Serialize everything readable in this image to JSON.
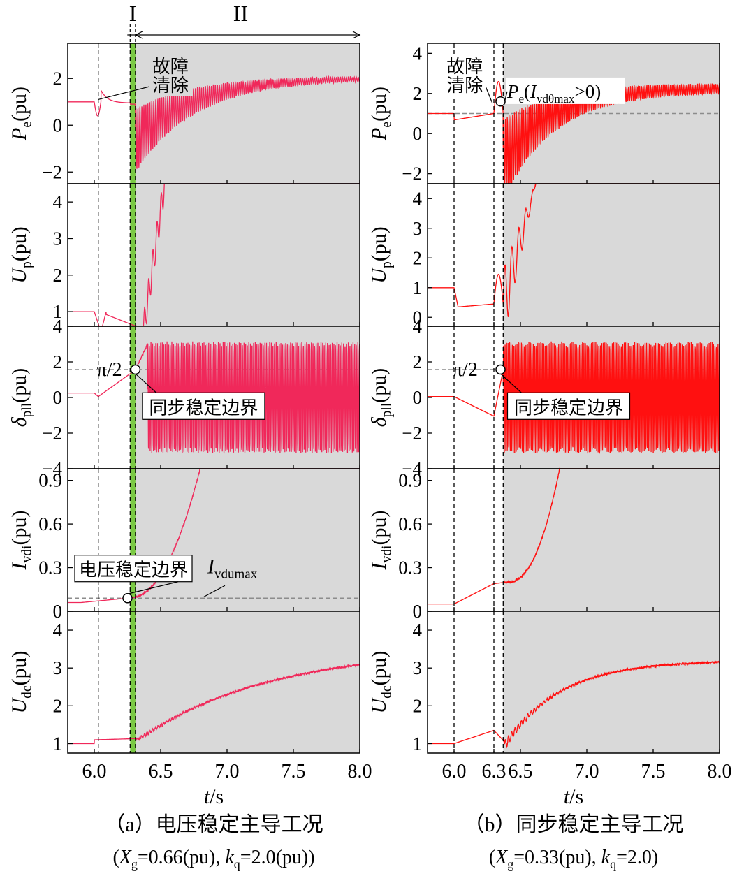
{
  "figure": {
    "trace_colors": {
      "a": "#f0285a",
      "b": "#ff1010"
    },
    "green_band_color": "#7ac943",
    "shade_color": "#d9d9d9",
    "dashed_ref_color": "#8c8c8c"
  },
  "chart_data": [
    {
      "type": "line",
      "id": "a",
      "caption": "（a）电压稳定主导工况",
      "params": "(Xg=0.66(pu), kq=2.0(pu))",
      "xlabel": "t/s",
      "xlim": [
        5.8,
        8.0
      ],
      "xticks": [
        "6.0",
        "6.5",
        "7.0",
        "7.5",
        "8.0"
      ],
      "xtick_values": [
        6.0,
        6.5,
        7.0,
        7.5,
        8.0
      ],
      "fault_start": 6.03,
      "fault_clear": 6.27,
      "stage_boundary": 6.31,
      "shaded_from": 6.31,
      "stage_labels": [
        "I",
        "II"
      ],
      "panels": [
        {
          "id": "Pe",
          "ylabel": "Pe(pu)",
          "ylim": [
            -2.5,
            3.5
          ],
          "yticks": [
            -2,
            0,
            2
          ],
          "ytick_labels": [
            "−2",
            "0",
            "2"
          ],
          "annotation": "故障\n清除"
        },
        {
          "id": "Up",
          "ylabel": "Up(pu)",
          "ylim": [
            0.6,
            4.5
          ],
          "yticks": [
            1,
            2,
            3,
            4
          ],
          "ytick_labels": [
            "1",
            "2",
            "3",
            "4"
          ]
        },
        {
          "id": "dpll",
          "ylabel": "δpll(pu)",
          "ylim": [
            -4,
            4
          ],
          "yticks": [
            -4,
            -2,
            0,
            2,
            4
          ],
          "ytick_labels": [
            "−4",
            "−2",
            "0",
            "2",
            "4"
          ],
          "ref_line": 1.5708,
          "ref_label": "π/2",
          "marker": {
            "x": 6.31,
            "y": 1.5708
          },
          "annotation": "同步稳定边界"
        },
        {
          "id": "Ivdi",
          "ylabel": "Ivdi(pu)",
          "ylim": [
            0,
            0.98
          ],
          "yticks": [
            0,
            0.3,
            0.6,
            0.9
          ],
          "ytick_labels": [
            "0",
            "0.3",
            "0.6",
            "0.9"
          ],
          "ref_line": 0.09,
          "ref_label": "Ivdumax",
          "marker": {
            "x": 6.25,
            "y": 0.09
          },
          "annotation": "电压稳定边界"
        },
        {
          "id": "Udc",
          "ylabel": "Udc(pu)",
          "ylim": [
            0.75,
            4.5
          ],
          "yticks": [
            1,
            2,
            3,
            4
          ],
          "ytick_labels": [
            "1",
            "2",
            "3",
            "4"
          ]
        }
      ]
    },
    {
      "type": "line",
      "id": "b",
      "caption": "（b）同步稳定主导工况",
      "params": "(Xg=0.33(pu), kq=2.0)",
      "xlabel": "t/s",
      "xlim": [
        5.8,
        8.0
      ],
      "xticks": [
        "6.0",
        "6.3",
        "6.5",
        "7.0",
        "7.5",
        "8.0"
      ],
      "xtick_values": [
        6.0,
        6.3,
        6.5,
        7.0,
        7.5,
        8.0
      ],
      "fault_start": 6.0,
      "fault_clear": 6.3,
      "stage_boundary": 6.37,
      "shaded_from": 6.37,
      "panels": [
        {
          "id": "Pe",
          "ylabel": "Pe(pu)",
          "ylim": [
            -2.5,
            4.5
          ],
          "yticks": [
            -2,
            0,
            2,
            4
          ],
          "ytick_labels": [
            "−2",
            "0",
            "2",
            "4"
          ],
          "ref_line": 1.0,
          "marker": {
            "x": 6.35,
            "y": 1.6
          },
          "annotation": "故障\n清除",
          "marker_label": "Pe(Ivdθmax>0)"
        },
        {
          "id": "Up",
          "ylabel": "Up(pu)",
          "ylim": [
            -0.3,
            4.5
          ],
          "yticks": [
            0,
            1,
            2,
            3,
            4
          ],
          "ytick_labels": [
            "0",
            "1",
            "2",
            "3",
            "4"
          ]
        },
        {
          "id": "dpll",
          "ylabel": "δpll(pu)",
          "ylim": [
            -4,
            4
          ],
          "yticks": [
            -4,
            -2,
            0,
            2,
            4
          ],
          "ytick_labels": [
            "−4",
            "−2",
            "0",
            "2",
            "4"
          ],
          "ref_line": 1.5708,
          "ref_label": "π/2",
          "marker": {
            "x": 6.35,
            "y": 1.5708
          },
          "annotation": "同步稳定边界"
        },
        {
          "id": "Ivdi",
          "ylabel": "Ivdi(pu)",
          "ylim": [
            0,
            0.98
          ],
          "yticks": [
            0,
            0.3,
            0.6,
            0.9
          ],
          "ytick_labels": [
            "0",
            "0.3",
            "0.6",
            "0.9"
          ]
        },
        {
          "id": "Udc",
          "ylabel": "Udc(pu)",
          "ylim": [
            0.75,
            4.5
          ],
          "yticks": [
            1,
            2,
            3,
            4
          ],
          "ytick_labels": [
            "1",
            "2",
            "3",
            "4"
          ]
        }
      ]
    }
  ]
}
